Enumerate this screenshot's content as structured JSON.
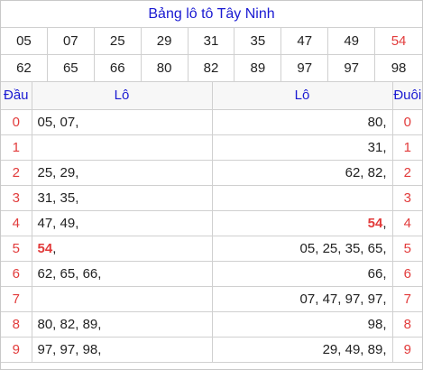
{
  "title": "Bảng lô tô Tây Ninh",
  "numbers": [
    "05",
    "07",
    "25",
    "29",
    "31",
    "35",
    "47",
    "49",
    "54",
    "62",
    "65",
    "66",
    "80",
    "82",
    "89",
    "97",
    "97",
    "98"
  ],
  "highlight_color": "#e23b3b",
  "headers": {
    "dau": "Đầu",
    "lo_left": "Lô",
    "lo_right": "Lô",
    "duoi": "Đuôi"
  },
  "rows": [
    {
      "dau": "0",
      "left": [
        {
          "t": "05, "
        },
        {
          "t": "07, "
        }
      ],
      "right": [
        {
          "t": "80, "
        }
      ],
      "duoi": "0"
    },
    {
      "dau": "1",
      "left": [],
      "right": [
        {
          "t": "31, "
        }
      ],
      "duoi": "1"
    },
    {
      "dau": "2",
      "left": [
        {
          "t": "25, "
        },
        {
          "t": "29, "
        }
      ],
      "right": [
        {
          "t": "62, "
        },
        {
          "t": "82, "
        }
      ],
      "duoi": "2"
    },
    {
      "dau": "3",
      "left": [
        {
          "t": "31, "
        },
        {
          "t": "35, "
        }
      ],
      "right": [],
      "duoi": "3"
    },
    {
      "dau": "4",
      "left": [
        {
          "t": "47, "
        },
        {
          "t": "49, "
        }
      ],
      "right": [
        {
          "t": "54",
          "hl": true
        },
        {
          "t": ", "
        }
      ],
      "duoi": "4"
    },
    {
      "dau": "5",
      "left": [
        {
          "t": "54",
          "hl": true
        },
        {
          "t": ", "
        }
      ],
      "right": [
        {
          "t": "05, "
        },
        {
          "t": "25, "
        },
        {
          "t": "35, "
        },
        {
          "t": "65, "
        }
      ],
      "duoi": "5"
    },
    {
      "dau": "6",
      "left": [
        {
          "t": "62, "
        },
        {
          "t": "65, "
        },
        {
          "t": "66, "
        }
      ],
      "right": [
        {
          "t": "66, "
        }
      ],
      "duoi": "6"
    },
    {
      "dau": "7",
      "left": [],
      "right": [
        {
          "t": "07, "
        },
        {
          "t": "47, "
        },
        {
          "t": "97, "
        },
        {
          "t": "97, "
        }
      ],
      "duoi": "7"
    },
    {
      "dau": "8",
      "left": [
        {
          "t": "80, "
        },
        {
          "t": "82, "
        },
        {
          "t": "89, "
        }
      ],
      "right": [
        {
          "t": "98, "
        }
      ],
      "duoi": "8"
    },
    {
      "dau": "9",
      "left": [
        {
          "t": "97, "
        },
        {
          "t": "97, "
        },
        {
          "t": "98, "
        }
      ],
      "right": [
        {
          "t": "29, "
        },
        {
          "t": "49, "
        },
        {
          "t": "89, "
        }
      ],
      "duoi": "9"
    }
  ]
}
